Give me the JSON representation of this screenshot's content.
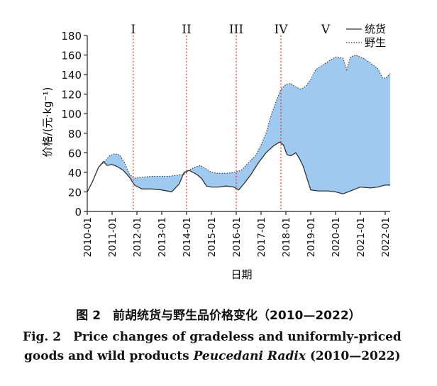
{
  "chart_data": {
    "type": "area",
    "ylabel": "价格/(元·kg⁻¹)",
    "xlabel": "日期",
    "ylim": [
      0,
      180
    ],
    "yticks": [
      0,
      20,
      40,
      60,
      80,
      100,
      120,
      140,
      160,
      180
    ],
    "xlim": [
      2010.0,
      2022.2
    ],
    "xticks": [
      "2010-01",
      "2011-01",
      "2012-01",
      "2013-01",
      "2014-01",
      "2015-01",
      "2016-01",
      "2017-01",
      "2018-01",
      "2019-01",
      "2020-01",
      "2021-01",
      "2022-01"
    ],
    "legend": {
      "position": "top-right",
      "entries": [
        "统货",
        "野生"
      ]
    },
    "periods": [
      {
        "label": "I",
        "x": 2011.85
      },
      {
        "label": "II",
        "x": 2014.0
      },
      {
        "label": "III",
        "x": 2016.0
      },
      {
        "label": "IV",
        "x": 2017.8
      },
      {
        "label": "V",
        "x": 2019.6
      }
    ],
    "series": [
      {
        "name": "统货",
        "style": "solid",
        "x": [
          2010.0,
          2010.2,
          2010.45,
          2010.65,
          2010.8,
          2011.0,
          2011.2,
          2011.45,
          2011.7,
          2011.9,
          2012.2,
          2012.6,
          2013.0,
          2013.4,
          2013.7,
          2013.9,
          2014.1,
          2014.4,
          2014.6,
          2014.8,
          2015.0,
          2015.3,
          2015.6,
          2015.9,
          2016.1,
          2016.3,
          2016.6,
          2016.9,
          2017.2,
          2017.5,
          2017.75,
          2017.9,
          2018.05,
          2018.2,
          2018.4,
          2018.55,
          2018.7,
          2018.85,
          2019.0,
          2019.3,
          2019.7,
          2020.0,
          2020.3,
          2020.6,
          2020.8,
          2021.0,
          2021.4,
          2021.7,
          2022.0,
          2022.2
        ],
        "values": [
          20,
          30,
          45,
          51,
          47,
          48,
          46,
          42,
          35,
          27,
          23,
          23,
          22,
          20,
          28,
          40,
          42,
          38,
          34,
          26,
          25,
          25,
          26,
          25,
          22,
          28,
          38,
          50,
          60,
          67,
          71,
          68,
          58,
          57,
          60,
          54,
          46,
          34,
          22,
          21,
          21,
          20,
          18,
          21,
          23,
          25,
          24,
          25,
          27,
          27
        ]
      },
      {
        "name": "野生",
        "style": "dotted",
        "x": [
          2010.0,
          2010.2,
          2010.45,
          2010.7,
          2010.9,
          2011.1,
          2011.3,
          2011.5,
          2011.7,
          2011.9,
          2012.2,
          2012.6,
          2013.0,
          2013.3,
          2013.6,
          2013.9,
          2014.1,
          2014.3,
          2014.55,
          2014.7,
          2015.0,
          2015.3,
          2015.6,
          2015.9,
          2016.2,
          2016.5,
          2016.8,
          2017.0,
          2017.2,
          2017.4,
          2017.6,
          2017.8,
          2018.0,
          2018.2,
          2018.35,
          2018.6,
          2018.8,
          2019.0,
          2019.2,
          2019.5,
          2019.8,
          2020.0,
          2020.3,
          2020.45,
          2020.6,
          2020.8,
          2021.1,
          2021.4,
          2021.7,
          2021.9,
          2022.05,
          2022.2
        ],
        "values": [
          20,
          30,
          45,
          51,
          57,
          59,
          58,
          50,
          38,
          34,
          35,
          36,
          36,
          36,
          37,
          38,
          42,
          45,
          47,
          45,
          40,
          39,
          39,
          40,
          42,
          50,
          58,
          68,
          80,
          98,
          112,
          125,
          130,
          131,
          128,
          125,
          128,
          135,
          145,
          150,
          155,
          158,
          157,
          145,
          158,
          160,
          157,
          152,
          146,
          136,
          137,
          141
        ]
      }
    ]
  },
  "caption": {
    "cn": "图 2　前胡统货与野生品价格变化（2010—2022）",
    "en_line1": "Fig. 2　Price changes of gradeless and uniformly-priced",
    "en_line2_prefix": "goods and wild products ",
    "en_line2_italic": "Peucedani Radix",
    "en_line2_suffix": " (2010—2022)"
  }
}
